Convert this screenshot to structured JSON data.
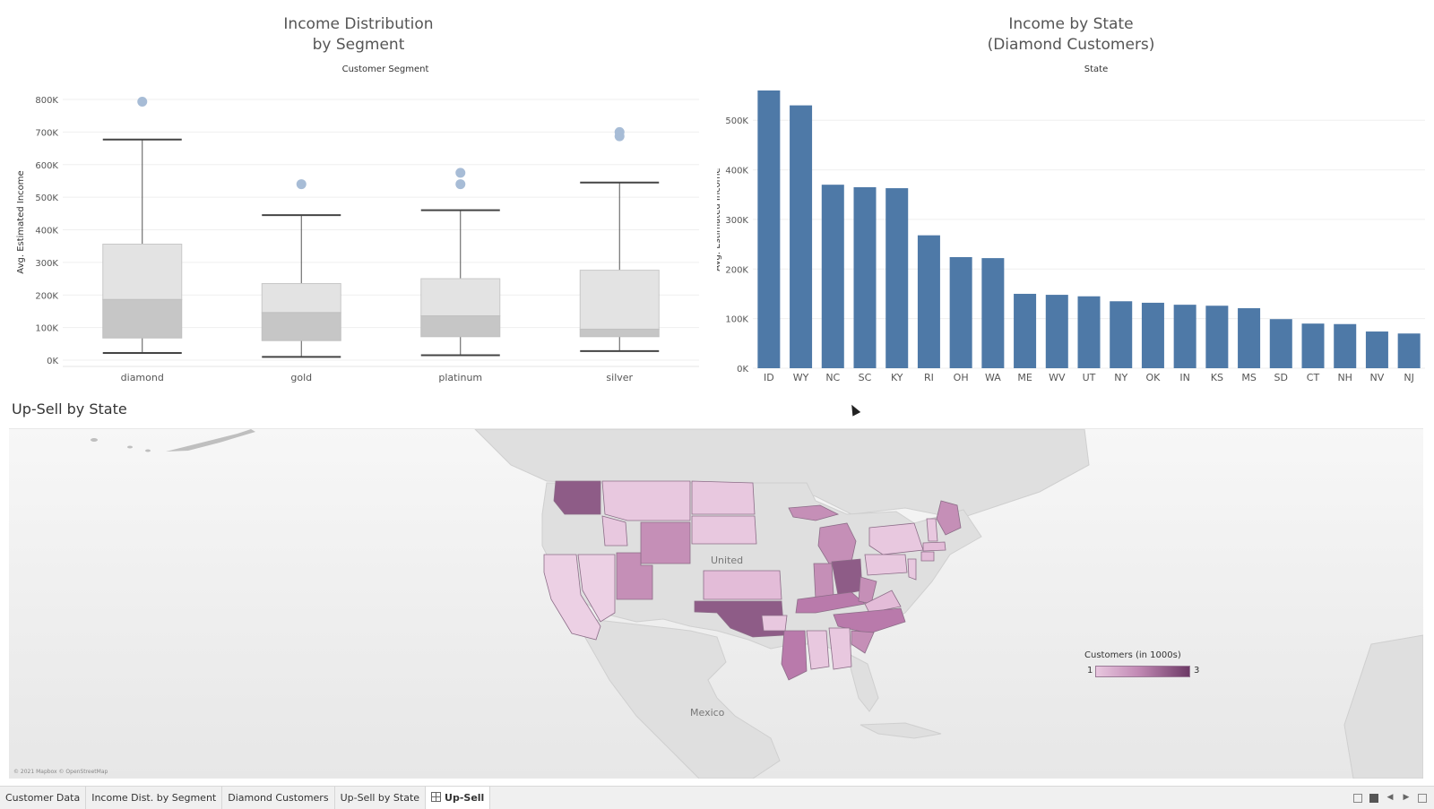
{
  "dashboard": {
    "upsell_title": "Up-Sell by State"
  },
  "boxplot": {
    "title_line1": "Income Distribution",
    "title_line2": "by Segment",
    "subheader": "Customer Segment",
    "ylabel": "Avg. Estimated Income"
  },
  "barchart": {
    "title_line1": "Income by State",
    "title_line2": "(Diamond Customers)",
    "subheader": "State",
    "ylabel": "Avg. Estimated Income"
  },
  "map": {
    "label_united": "United",
    "label_mexico": "Mexico",
    "copyright": "© 2021 Mapbox © OpenStreetMap",
    "legend_title": "Customers (in 1000s)",
    "legend_min": "1",
    "legend_max": "3"
  },
  "footer": {
    "tabs": [
      "Customer Data",
      "Income Dist. by Segment",
      "Diamond Customers",
      "Up-Sell by State",
      "Up-Sell"
    ],
    "active_tab": "Up-Sell"
  },
  "chart_data": [
    {
      "type": "box",
      "title": "Income Distribution by Segment",
      "xlabel": "Customer Segment",
      "ylabel": "Avg. Estimated Income",
      "ylim": [
        0,
        800000
      ],
      "yticks": [
        "0K",
        "100K",
        "200K",
        "300K",
        "400K",
        "500K",
        "600K",
        "700K",
        "800K"
      ],
      "categories": [
        "diamond",
        "gold",
        "platinum",
        "silver"
      ],
      "boxes": [
        {
          "category": "diamond",
          "min": 22000,
          "q1": 68000,
          "median": 186000,
          "q3": 356000,
          "max": 677000,
          "outliers": [
            793000
          ]
        },
        {
          "category": "gold",
          "min": 10000,
          "q1": 60000,
          "median": 146000,
          "q3": 235000,
          "max": 445000,
          "outliers": [
            540000
          ]
        },
        {
          "category": "platinum",
          "min": 15000,
          "q1": 72000,
          "median": 136000,
          "q3": 250000,
          "max": 460000,
          "outliers": [
            540000,
            575000
          ]
        },
        {
          "category": "silver",
          "min": 28000,
          "q1": 72000,
          "median": 95000,
          "q3": 276000,
          "max": 545000,
          "outliers": [
            687000,
            700000
          ]
        }
      ]
    },
    {
      "type": "bar",
      "title": "Income by State (Diamond Customers)",
      "xlabel": "State",
      "ylabel": "Avg. Estimated Income",
      "ylim": [
        0,
        550000
      ],
      "yticks": [
        "0K",
        "100K",
        "200K",
        "300K",
        "400K",
        "500K"
      ],
      "categories": [
        "ID",
        "WY",
        "NC",
        "SC",
        "KY",
        "RI",
        "OH",
        "WA",
        "ME",
        "WV",
        "UT",
        "NY",
        "OK",
        "IN",
        "KS",
        "MS",
        "SD",
        "CT",
        "NH",
        "NV",
        "NJ"
      ],
      "values": [
        560000,
        530000,
        370000,
        365000,
        363000,
        268000,
        224000,
        222000,
        150000,
        148000,
        145000,
        135000,
        132000,
        128000,
        126000,
        121000,
        99000,
        90000,
        89000,
        74000,
        70000
      ],
      "color": "#4e79a7"
    }
  ]
}
